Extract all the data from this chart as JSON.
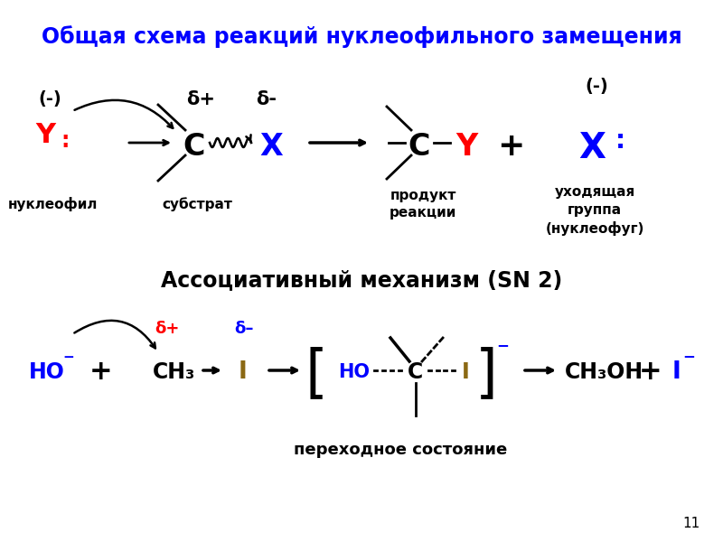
{
  "title": "Общая схема реакций нуклеофильного замещения",
  "title_color": "#0000FF",
  "title_fontsize": 17,
  "bg_color": "#FFFFFF",
  "section2_title": "Ассоциативный механизм (SN 2)",
  "page_number": "11"
}
